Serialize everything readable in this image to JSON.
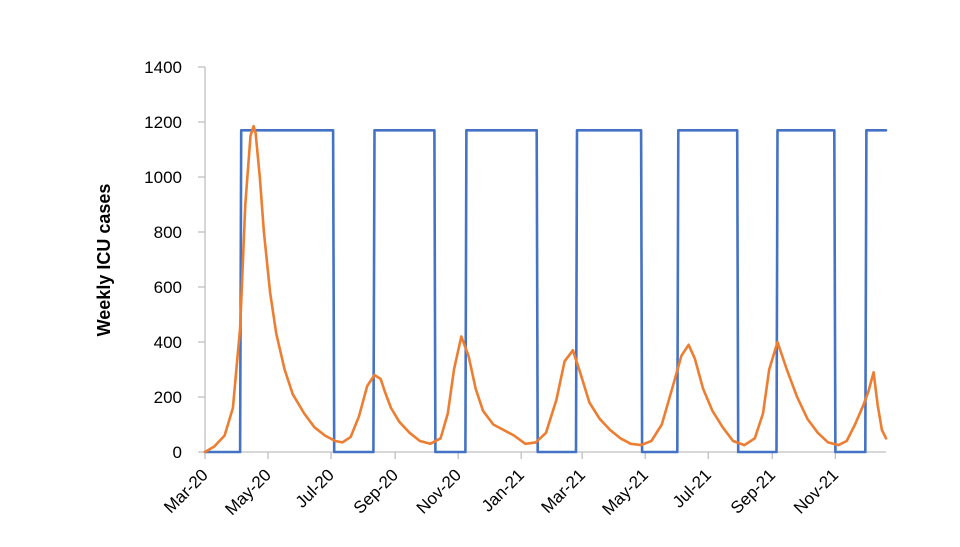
{
  "chart_data": {
    "type": "line",
    "title": "",
    "xlabel": "",
    "ylabel": "Weekly ICU cases",
    "ylim": [
      0,
      1400
    ],
    "yticks": [
      0,
      200,
      400,
      600,
      800,
      1000,
      1200,
      1400
    ],
    "xlim": [
      "2020-03-01",
      "2021-12-20"
    ],
    "xticks": [
      "Mar-20",
      "May-20",
      "Jul-20",
      "Sep-20",
      "Nov-20",
      "Jan-21",
      "Mar-21",
      "May-21",
      "Jul-21",
      "Sep-21",
      "Nov-21"
    ],
    "grid": false,
    "legend": "none",
    "colors": {
      "series_1": "#4472C4",
      "series_2": "#ED7D31"
    },
    "series": [
      {
        "style": "step",
        "x": [
          "2020-03-01",
          "2020-04-04",
          "2020-04-05",
          "2020-07-03",
          "2020-07-04",
          "2020-08-11",
          "2020-08-12",
          "2020-10-09",
          "2020-10-10",
          "2020-11-08",
          "2020-11-09",
          "2021-01-16",
          "2021-01-17",
          "2021-02-23",
          "2021-02-24",
          "2021-04-27",
          "2021-04-28",
          "2021-06-01",
          "2021-06-02",
          "2021-07-29",
          "2021-07-30",
          "2021-09-05",
          "2021-09-06",
          "2021-10-31",
          "2021-11-01",
          "2021-11-30",
          "2021-12-01",
          "2021-12-20"
        ],
        "values": [
          0,
          0,
          1170,
          1170,
          0,
          0,
          1170,
          1170,
          0,
          0,
          1170,
          1170,
          0,
          0,
          1170,
          1170,
          0,
          0,
          1170,
          1170,
          0,
          0,
          1170,
          1170,
          0,
          0,
          1170,
          1170
        ]
      },
      {
        "x": [
          "2020-03-01",
          "2020-03-10",
          "2020-03-20",
          "2020-03-28",
          "2020-04-04",
          "2020-04-09",
          "2020-04-14",
          "2020-04-17",
          "2020-04-19",
          "2020-04-23",
          "2020-04-27",
          "2020-05-03",
          "2020-05-09",
          "2020-05-17",
          "2020-05-25",
          "2020-06-05",
          "2020-06-15",
          "2020-06-25",
          "2020-07-05",
          "2020-07-12",
          "2020-07-20",
          "2020-07-28",
          "2020-08-05",
          "2020-08-12",
          "2020-08-18",
          "2020-08-22",
          "2020-08-28",
          "2020-09-05",
          "2020-09-15",
          "2020-09-25",
          "2020-10-05",
          "2020-10-15",
          "2020-10-22",
          "2020-10-28",
          "2020-11-04",
          "2020-11-11",
          "2020-11-18",
          "2020-11-25",
          "2020-12-05",
          "2020-12-15",
          "2020-12-25",
          "2021-01-05",
          "2021-01-15",
          "2021-01-25",
          "2021-02-04",
          "2021-02-12",
          "2021-02-20",
          "2021-02-27",
          "2021-03-08",
          "2021-03-18",
          "2021-03-28",
          "2021-04-07",
          "2021-04-17",
          "2021-04-27",
          "2021-05-07",
          "2021-05-17",
          "2021-05-27",
          "2021-06-05",
          "2021-06-12",
          "2021-06-18",
          "2021-06-26",
          "2021-07-05",
          "2021-07-15",
          "2021-07-25",
          "2021-08-05",
          "2021-08-15",
          "2021-08-23",
          "2021-08-29",
          "2021-09-06",
          "2021-09-15",
          "2021-09-25",
          "2021-10-05",
          "2021-10-15",
          "2021-10-25",
          "2021-11-04",
          "2021-11-12",
          "2021-11-20",
          "2021-11-28",
          "2021-12-03",
          "2021-12-08",
          "2021-12-12",
          "2021-12-16",
          "2021-12-20"
        ],
        "values": [
          0,
          20,
          60,
          160,
          450,
          900,
          1150,
          1185,
          1160,
          1000,
          800,
          580,
          430,
          300,
          210,
          140,
          90,
          60,
          40,
          35,
          55,
          130,
          240,
          280,
          265,
          220,
          160,
          110,
          70,
          40,
          30,
          50,
          140,
          300,
          420,
          350,
          230,
          150,
          100,
          80,
          60,
          30,
          35,
          70,
          190,
          330,
          370,
          290,
          180,
          120,
          80,
          50,
          30,
          25,
          40,
          100,
          230,
          350,
          390,
          340,
          230,
          150,
          90,
          40,
          25,
          50,
          140,
          300,
          400,
          300,
          200,
          120,
          70,
          35,
          25,
          40,
          100,
          170,
          220,
          290,
          170,
          80,
          50
        ]
      }
    ]
  }
}
